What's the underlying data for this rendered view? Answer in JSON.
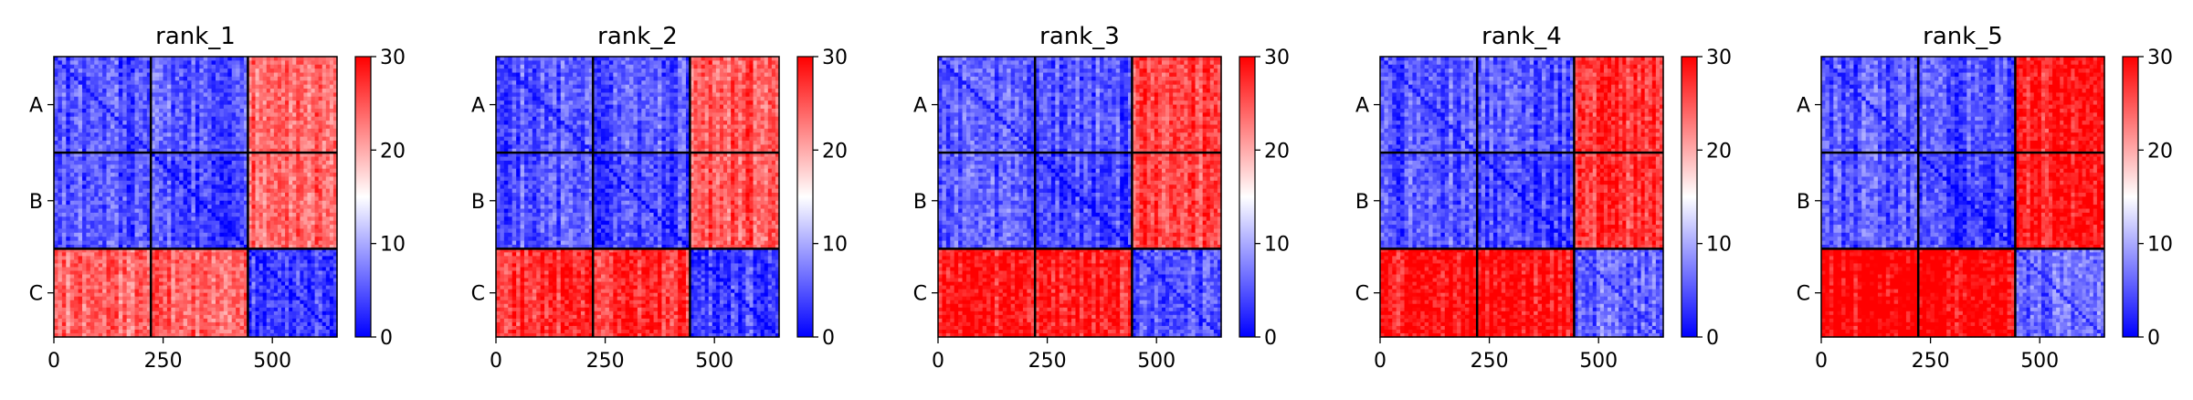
{
  "chart_data": [
    {
      "type": "heatmap",
      "title": "rank_1",
      "xlim": [
        0,
        648
      ],
      "xticks": [
        0,
        250,
        500
      ],
      "ytick_labels": [
        "A",
        "B",
        "C"
      ],
      "block_boundaries": [
        222,
        444
      ],
      "colorbar": {
        "range": [
          0,
          30
        ],
        "ticks": [
          0,
          10,
          20,
          30
        ],
        "colormap": "bwr"
      },
      "block_mean_values": [
        [
          5,
          5,
          24
        ],
        [
          5,
          4,
          24
        ],
        [
          24,
          24,
          4
        ]
      ]
    },
    {
      "type": "heatmap",
      "title": "rank_2",
      "xlim": [
        0,
        648
      ],
      "xticks": [
        0,
        250,
        500
      ],
      "ytick_labels": [
        "A",
        "B",
        "C"
      ],
      "block_boundaries": [
        222,
        444
      ],
      "colorbar": {
        "range": [
          0,
          30
        ],
        "ticks": [
          0,
          10,
          20,
          30
        ],
        "colormap": "bwr"
      },
      "block_mean_values": [
        [
          5,
          5,
          25
        ],
        [
          5,
          4,
          25
        ],
        [
          27,
          27,
          4
        ]
      ]
    },
    {
      "type": "heatmap",
      "title": "rank_3",
      "xlim": [
        0,
        648
      ],
      "xticks": [
        0,
        250,
        500
      ],
      "ytick_labels": [
        "A",
        "B",
        "C"
      ],
      "block_boundaries": [
        222,
        444
      ],
      "colorbar": {
        "range": [
          0,
          30
        ],
        "ticks": [
          0,
          10,
          20,
          30
        ],
        "colormap": "bwr"
      },
      "block_mean_values": [
        [
          5,
          5,
          26
        ],
        [
          5,
          4,
          26
        ],
        [
          28,
          28,
          5
        ]
      ]
    },
    {
      "type": "heatmap",
      "title": "rank_4",
      "xlim": [
        0,
        648
      ],
      "xticks": [
        0,
        250,
        500
      ],
      "ytick_labels": [
        "A",
        "B",
        "C"
      ],
      "block_boundaries": [
        222,
        444
      ],
      "colorbar": {
        "range": [
          0,
          30
        ],
        "ticks": [
          0,
          10,
          20,
          30
        ],
        "colormap": "bwr"
      },
      "block_mean_values": [
        [
          5,
          5,
          27
        ],
        [
          5,
          4,
          27
        ],
        [
          29,
          29,
          6
        ]
      ]
    },
    {
      "type": "heatmap",
      "title": "rank_5",
      "xlim": [
        0,
        648
      ],
      "xticks": [
        0,
        250,
        500
      ],
      "ytick_labels": [
        "A",
        "B",
        "C"
      ],
      "block_boundaries": [
        222,
        444
      ],
      "colorbar": {
        "range": [
          0,
          30
        ],
        "ticks": [
          0,
          10,
          20,
          30
        ],
        "colormap": "bwr"
      },
      "block_mean_values": [
        [
          5,
          5,
          28
        ],
        [
          5,
          4,
          28
        ],
        [
          30,
          30,
          6
        ]
      ]
    }
  ]
}
